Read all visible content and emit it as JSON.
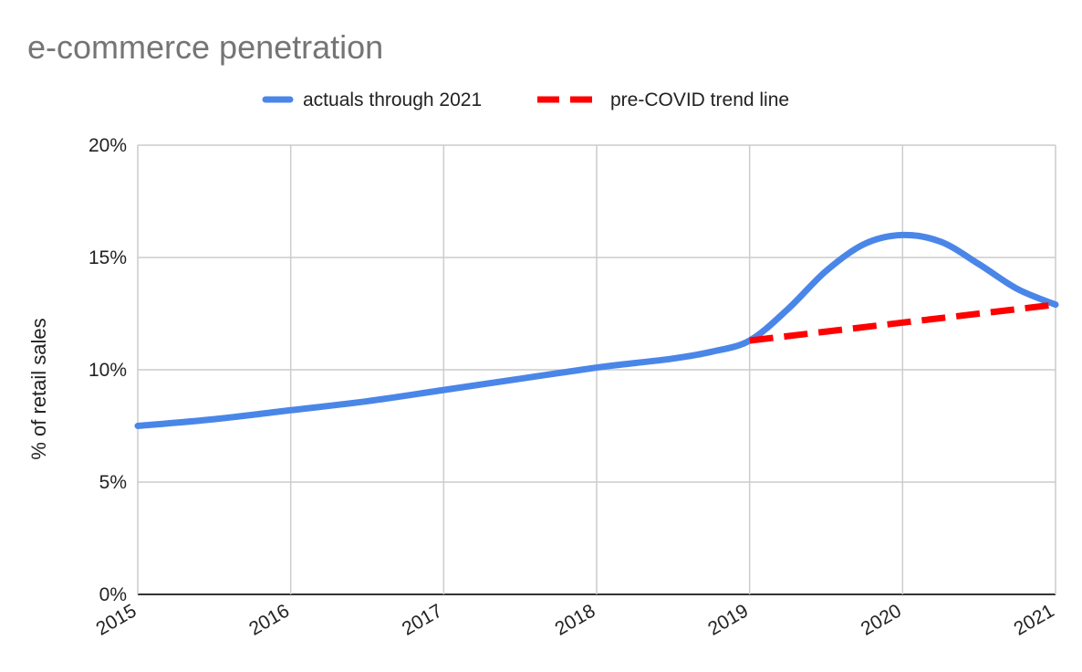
{
  "chart_data": {
    "type": "line",
    "title": "e-commerce penetration",
    "xlabel": "",
    "ylabel": "% of retail sales",
    "x_ticks": [
      "2015",
      "2016",
      "2017",
      "2018",
      "2019",
      "2020",
      "2021"
    ],
    "y_ticks": [
      "0%",
      "5%",
      "10%",
      "15%",
      "20%"
    ],
    "xlim": [
      2015,
      2021
    ],
    "ylim": [
      0,
      20
    ],
    "grid": true,
    "legend_position": "top",
    "series": [
      {
        "name": "actuals through 2021",
        "color": "#4a86e8",
        "style": "solid",
        "x": [
          2015,
          2015.5,
          2016,
          2016.5,
          2017,
          2017.5,
          2018,
          2018.25,
          2018.5,
          2018.75,
          2019,
          2019.25,
          2019.5,
          2019.75,
          2020,
          2020.25,
          2020.5,
          2020.75,
          2021
        ],
        "y": [
          7.5,
          7.8,
          8.2,
          8.6,
          9.1,
          9.6,
          10.1,
          10.3,
          10.5,
          10.8,
          11.3,
          12.7,
          14.4,
          15.6,
          16.0,
          15.7,
          14.7,
          13.6,
          12.9
        ]
      },
      {
        "name": "pre-COVID trend line",
        "color": "#ff0000",
        "style": "dashed",
        "x": [
          2019,
          2021
        ],
        "y": [
          11.3,
          12.9
        ]
      }
    ]
  }
}
